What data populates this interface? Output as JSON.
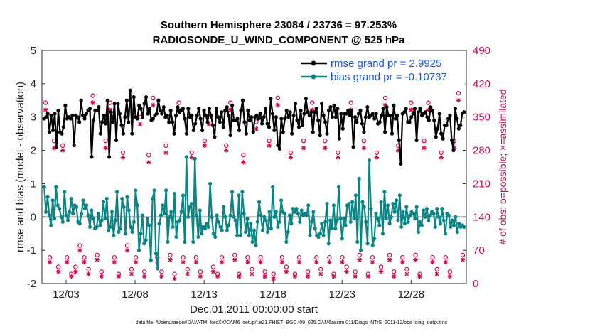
{
  "chart_data": {
    "type": "line",
    "title_line1": "Southern Hemisphere 23084 / 23736 = 97.253%",
    "title_line2": "RADIOSONDE_U_WIND_COMPONENT @ 525 hPa",
    "ylabel_left": "rmse and bias (model - observation)",
    "ylabel_right": "# of obs: o=possible; ×=assimilated",
    "xlabel": "Dec.01,2011 00:00:00 start",
    "footnote": "data file: /Users/raeder/DAI/ATM_forcXX/CAM6_setup/f.e21.FHIST_BGC.f09_025.CAM6assim.011/Diags_NTrS_2011-12/obs_diag_output.nc",
    "ylim_left": [
      -2,
      5
    ],
    "ylim_right": [
      0,
      490
    ],
    "xlim_days": [
      1.25,
      32.0
    ],
    "x_tick_labels": [
      "12/03",
      "12/08",
      "12/13",
      "12/18",
      "12/23",
      "12/28"
    ],
    "x_tick_days": [
      3,
      8,
      13,
      18,
      23,
      28
    ],
    "y_tick_labels_left": [
      "-2",
      "-1",
      "0",
      "1",
      "2",
      "3",
      "4",
      "5"
    ],
    "y_tick_labels_right": [
      "0",
      "70",
      "140",
      "210",
      "280",
      "350",
      "420",
      "490"
    ],
    "legend": {
      "rmse_label": "rmse grand pr = 2.9925",
      "bias_label": "bias grand pr = -0.10737"
    },
    "series": [
      {
        "name": "rmse",
        "color": "#000000",
        "values": [
          2.95,
          3.0,
          3.1,
          2.55,
          3.05,
          2.6,
          3.1,
          2.1,
          3.2,
          2.55,
          2.5,
          2.7,
          3.35,
          2.95,
          3.0,
          2.95,
          3.05,
          2.15,
          3.05,
          3.0,
          2.85,
          3.5,
          3.05,
          2.95,
          3.1,
          3.2,
          3.25,
          1.8,
          2.9,
          3.2,
          3.2,
          3.3,
          2.5,
          2.85,
          3.05,
          2.8,
          3.5,
          1.8,
          3.15,
          2.85,
          3.4,
          2.3,
          3.4,
          3.1,
          2.75,
          2.5,
          3.0,
          3.5,
          2.85,
          3.8,
          2.5,
          3.6,
          3.0,
          2.95,
          3.35,
          3.25,
          3.0,
          3.4,
          3.6,
          3.1,
          3.25,
          2.9,
          2.95,
          3.05,
          3.1,
          3.5,
          3.2,
          3.1,
          3.3,
          3.0,
          3.05,
          2.85,
          3.2,
          2.85,
          2.5,
          3.05,
          3.3,
          3.15,
          3.2,
          3.25,
          2.95,
          2.5,
          3.25,
          3.0,
          3.05,
          2.6,
          2.8,
          3.05,
          3.25,
          2.95,
          2.6,
          3.2,
          3.05,
          2.85,
          3.25,
          3.05,
          2.75,
          2.4,
          3.25,
          3.0,
          2.85,
          3.15,
          2.7,
          3.2,
          3.3,
          3.05,
          2.45,
          3.35,
          2.9,
          2.9,
          2.95,
          2.6,
          3.2,
          3.5,
          2.85,
          2.5,
          3.2,
          2.9,
          3.0,
          2.55,
          3.0,
          3.05,
          2.95,
          3.1,
          2.8,
          3.0,
          3.25,
          2.8,
          2.7,
          3.55,
          3.1,
          2.6,
          3.0,
          2.15,
          2.05,
          2.95,
          2.55,
          2.95,
          3.2,
          3.0,
          3.15,
          2.5,
          3.05,
          3.4,
          2.9,
          2.7,
          3.2,
          2.75,
          3.1,
          3.55,
          3.15,
          3.05,
          3.15,
          2.55,
          3.15,
          3.25,
          2.9,
          2.45,
          3.4,
          3.05,
          2.85,
          2.5,
          3.2,
          3.3,
          3.0,
          3.35,
          3.0,
          3.25,
          2.35,
          3.1,
          2.65,
          3.1,
          3.1,
          3.2,
          3.05,
          3.2,
          2.1,
          3.0,
          2.85,
          3.1,
          3.2,
          2.8,
          2.55,
          3.0,
          3.3,
          3.0,
          3.05,
          3.1,
          2.95,
          3.1,
          2.8,
          2.85,
          3.05,
          3.25,
          2.55,
          3.3,
          3.05,
          3.05,
          2.5,
          3.35,
          2.95,
          3.05,
          2.3,
          1.6,
          3.1,
          3.15,
          3.25,
          2.85,
          2.85,
          3.0,
          3.1,
          3.25,
          2.3,
          3.15,
          3.25,
          3.05,
          3.1,
          3.15,
          3.0,
          2.9,
          3.3,
          3.2,
          2.9,
          2.4,
          2.65,
          3.1,
          2.5,
          2.35,
          2.75,
          2.75,
          2.95,
          3.05,
          2.3,
          2.0,
          3.25,
          2.95,
          2.65,
          2.75,
          3.1,
          3.15
        ]
      },
      {
        "name": "bias",
        "color": "#0a8585",
        "values": [
          0.9,
          0.15,
          0.6,
          0.05,
          -0.25,
          0.5,
          -0.05,
          0.9,
          0.35,
          0.25,
          0.0,
          -0.15,
          0.75,
          0.05,
          -0.1,
          0.15,
          0.55,
          0.1,
          0.35,
          0.3,
          -0.15,
          -0.2,
          0.1,
          0.5,
          0.25,
          0.35,
          0.05,
          -0.3,
          0.2,
          -0.05,
          -0.35,
          -0.3,
          0.1,
          -0.25,
          -0.1,
          0.45,
          -0.05,
          0.55,
          -0.4,
          -0.3,
          0.15,
          -0.55,
          -0.1,
          0.75,
          -0.45,
          -0.35,
          0.55,
          0.3,
          -0.5,
          0.6,
          0.2,
          -0.3,
          -0.45,
          -0.15,
          0.8,
          0.35,
          -1.0,
          -0.5,
          0.05,
          -0.8,
          -0.7,
          -0.05,
          -0.25,
          -1.3,
          0.55,
          0.8,
          -1.1,
          -1.55,
          -0.2,
          0.05,
          0.35,
          0.1,
          0.8,
          -0.75,
          0.0,
          0.15,
          -0.3,
          0.7,
          -0.6,
          -0.15,
          -0.1,
          0.15,
          0.65,
          -0.75,
          1.8,
          0.0,
          0.3,
          0.4,
          -0.75,
          1.75,
          0.05,
          -0.6,
          0.2,
          -0.5,
          -0.3,
          -0.35,
          -0.2,
          -0.3,
          1.0,
          0.0,
          -0.5,
          -0.6,
          0.05,
          -0.15,
          -0.3,
          -0.4,
          0.3,
          0.0,
          -0.4,
          -0.25,
          0.05,
          0.75,
          0.0,
          -0.1,
          -0.55,
          0.65,
          -0.55,
          0.75,
          0.1,
          -0.45,
          -0.05,
          -0.55,
          -0.2,
          -0.75,
          -0.4,
          -0.85,
          -0.15,
          0.45,
          0.05,
          -0.4,
          0.0,
          -0.1,
          -0.45,
          0.15,
          -0.35,
          0.9,
          0.0,
          0.15,
          -0.3,
          -0.15,
          0.5,
          0.15,
          0.1,
          -0.75,
          -0.45,
          0.05,
          -0.2,
          0.25,
          0.15,
          0.25,
          0.1,
          -0.15,
          0.2,
          0.05,
          0.1,
          0.05,
          0.35,
          -0.55,
          -0.15,
          0.15,
          -0.35,
          -0.55,
          -0.6,
          -0.5,
          -0.2,
          -0.55,
          -0.15,
          0.4,
          -0.8,
          -0.1,
          -0.35,
          0.35,
          -0.35,
          -0.1,
          0.9,
          -0.05,
          -0.65,
          -0.05,
          -0.25,
          0.35,
          0.4,
          -0.15,
          0.45,
          -0.05,
          0.65,
          -0.75,
          1.15,
          -1.0,
          0.45,
          0.3,
          -0.15,
          -0.8,
          1.7,
          0.25,
          -0.85,
          -0.65,
          0.1,
          -0.05,
          -0.25,
          0.45,
          -0.5,
          0.75,
          -0.05,
          0.35,
          -0.2,
          0.0,
          0.4,
          0.15,
          0.5,
          -0.1,
          0.65,
          -0.3,
          0.15,
          -0.2,
          0.3,
          -0.15,
          0.05,
          0.15,
          0.1,
          -0.05,
          0.3,
          -0.45,
          -0.15,
          -0.25,
          0.2,
          0.0,
          0.25,
          -0.1,
          0.05,
          0.15,
          0.1,
          -0.3,
          0.25,
          0.0,
          -0.2,
          0.25,
          -0.1,
          -0.5,
          0.1,
          0.05,
          -0.3,
          -0.1,
          -0.25,
          0.0,
          -0.45,
          -0.2,
          -0.3,
          -0.25,
          -0.3
        ]
      }
    ],
    "obs_possible": {
      "color": "#cc0a55",
      "marker": "circle",
      "values": [
        380,
        55,
        300,
        35,
        290,
        55,
        20,
        35,
        80,
        55,
        30,
        395,
        60,
        25,
        300,
        380,
        55,
        20,
        275,
        80,
        30,
        55,
        350,
        25,
        270,
        390,
        55,
        25,
        290,
        60,
        20,
        380,
        55,
        30,
        275,
        55,
        25,
        300,
        350,
        35,
        20,
        55,
        290,
        380,
        60,
        20,
        270,
        55,
        30,
        340,
        55,
        25,
        300,
        20,
        390,
        55,
        35,
        275,
        20,
        55,
        300,
        25,
        380,
        55,
        30,
        300,
        55,
        20,
        275,
        55,
        35,
        380,
        25,
        60,
        300,
        20,
        55,
        275,
        35,
        390,
        60,
        25,
        290,
        55,
        30,
        380,
        60,
        20,
        300,
        380,
        55,
        30,
        275,
        55,
        25,
        300,
        400,
        60
      ]
    },
    "obs_assimilated": {
      "color": "#cc0a55",
      "marker": "asterisk",
      "values": [
        365,
        45,
        285,
        25,
        280,
        45,
        15,
        25,
        70,
        45,
        20,
        380,
        50,
        15,
        285,
        365,
        45,
        15,
        265,
        70,
        20,
        45,
        335,
        15,
        255,
        375,
        45,
        15,
        275,
        50,
        10,
        365,
        45,
        20,
        265,
        45,
        15,
        290,
        335,
        25,
        15,
        45,
        280,
        365,
        50,
        15,
        255,
        45,
        20,
        325,
        45,
        15,
        290,
        10,
        375,
        45,
        25,
        265,
        15,
        45,
        285,
        15,
        365,
        45,
        20,
        285,
        45,
        15,
        265,
        45,
        25,
        365,
        15,
        50,
        285,
        15,
        45,
        265,
        25,
        375,
        50,
        15,
        280,
        45,
        20,
        365,
        50,
        15,
        285,
        365,
        45,
        20,
        265,
        45,
        15,
        285,
        385,
        50
      ]
    }
  }
}
